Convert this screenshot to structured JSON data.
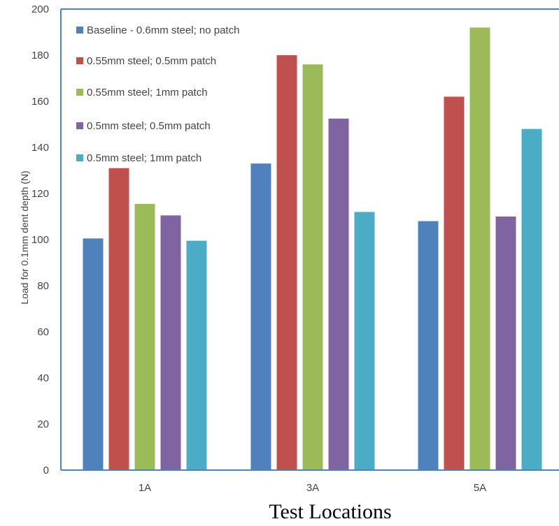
{
  "chart_data": {
    "type": "bar",
    "title": "",
    "xlabel": "Test Locations",
    "ylabel": "Load for 0.1mm dent depth (N)",
    "ylim": [
      0,
      200
    ],
    "yticks": [
      "0",
      "20",
      "40",
      "60",
      "80",
      "100",
      "120",
      "140",
      "160",
      "180",
      "200"
    ],
    "categories": [
      "1A",
      "3A",
      "5A"
    ],
    "series": [
      {
        "name": "Baseline - 0.6mm steel; no patch",
        "color": "#4F81BD",
        "values": [
          100.5,
          133,
          108
        ]
      },
      {
        "name": "0.55mm steel; 0.5mm patch",
        "color": "#C0504D",
        "values": [
          131,
          180,
          162
        ]
      },
      {
        "name": "0.55mm steel; 1mm patch",
        "color": "#9BBB59",
        "values": [
          115.5,
          176,
          192
        ]
      },
      {
        "name": "0.5mm steel; 0.5mm patch",
        "color": "#8064A2",
        "values": [
          110.5,
          152.5,
          110
        ]
      },
      {
        "name": "0.5mm steel; 1mm patch",
        "color": "#4BACC6",
        "values": [
          99.5,
          112,
          148
        ]
      }
    ],
    "legend_position": "top-left",
    "grid": false,
    "axis_color": "#4F81BD"
  }
}
